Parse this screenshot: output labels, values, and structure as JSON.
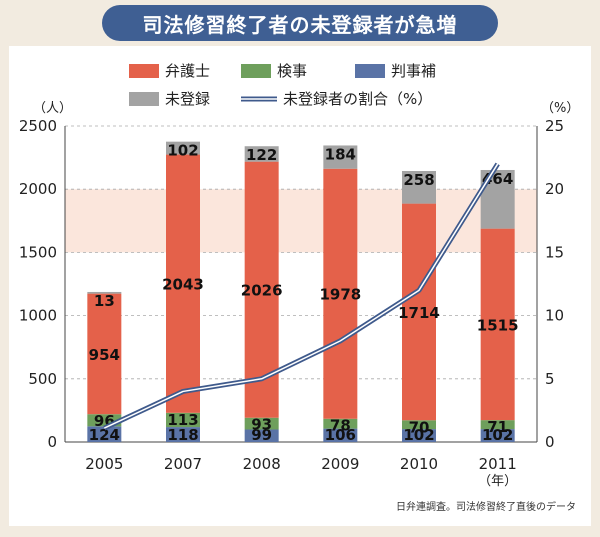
{
  "title": "司法修習終了者の未登録者が急増",
  "source": "日弁連調査。司法修習終了直後のデータ",
  "colors": {
    "bengoshi": "#e4614a",
    "kenji": "#6e9f5c",
    "hanji": "#5a73a6",
    "mitouroku": "#a3a3a3",
    "line": "#3f5a8c",
    "banner": "#3f5f93",
    "band": "#fbe6dc"
  },
  "chart_data": {
    "type": "bar",
    "stacked": true,
    "categories": [
      "2005",
      "2007",
      "2008",
      "2009",
      "2010",
      "2011"
    ],
    "x_unit": "（年）",
    "series": [
      {
        "name": "判事補",
        "values": [
          124,
          118,
          99,
          106,
          102,
          102
        ]
      },
      {
        "name": "検事",
        "values": [
          96,
          113,
          93,
          78,
          70,
          71
        ]
      },
      {
        "name": "弁護士",
        "values": [
          954,
          2043,
          2026,
          1978,
          1714,
          1515
        ]
      },
      {
        "name": "未登録",
        "values": [
          13,
          102,
          122,
          184,
          258,
          464
        ]
      }
    ],
    "line_series": {
      "name": "未登録者の割合（%）",
      "values": [
        1.1,
        4.0,
        5.0,
        8.0,
        12.0,
        22.0
      ]
    },
    "y_left": {
      "unit": "（人）",
      "range": [
        0,
        2500
      ],
      "ticks": [
        0,
        500,
        1000,
        1500,
        2000,
        2500
      ]
    },
    "y_right": {
      "unit": "（%）",
      "range": [
        0,
        25
      ],
      "ticks": [
        0,
        5,
        10,
        15,
        20,
        25
      ]
    },
    "legend": {
      "items": [
        "弁護士",
        "検事",
        "判事補",
        "未登録",
        "未登録者の割合（%）"
      ],
      "placement": "top"
    },
    "grid": true
  }
}
